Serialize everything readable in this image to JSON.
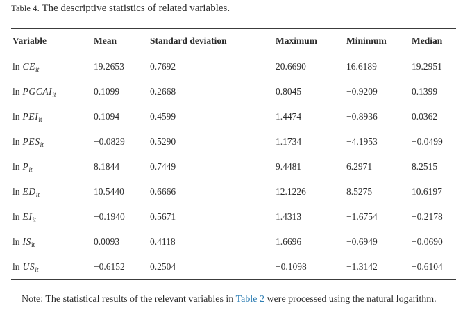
{
  "caption": {
    "label": "Table 4.",
    "title": "The descriptive statistics of related variables."
  },
  "table": {
    "headers": [
      "Variable",
      "Mean",
      "Standard deviation",
      "Maximum",
      "Minimum",
      "Median"
    ],
    "rows": [
      {
        "var_prefix": "ln",
        "var_name": "CE",
        "var_sub": "it",
        "var_sub_italic": true,
        "mean": "19.2653",
        "std": "0.7692",
        "max": "20.6690",
        "min": "16.6189",
        "median": "19.2951"
      },
      {
        "var_prefix": "ln",
        "var_name": "PGCAI",
        "var_sub": "it",
        "var_sub_italic": true,
        "mean": "0.1099",
        "std": "0.2668",
        "max": "0.8045",
        "min": "−0.9209",
        "median": "0.1399"
      },
      {
        "var_prefix": "ln",
        "var_name": "PEI",
        "var_sub": "it",
        "var_sub_italic": false,
        "mean": "0.1094",
        "std": "0.4599",
        "max": "1.4474",
        "min": "−0.8936",
        "median": "0.0362"
      },
      {
        "var_prefix": "ln",
        "var_name": "PES",
        "var_sub": "it",
        "var_sub_italic": true,
        "mean": "−0.0829",
        "std": "0.5290",
        "max": "1.1734",
        "min": "−4.1953",
        "median": "−0.0499"
      },
      {
        "var_prefix": "ln",
        "var_name": "P",
        "var_sub": "it",
        "var_sub_italic": true,
        "mean": "8.1844",
        "std": "0.7449",
        "max": "9.4481",
        "min": "6.2971",
        "median": "8.2515"
      },
      {
        "var_prefix": "ln",
        "var_name": "ED",
        "var_sub": "it",
        "var_sub_italic": true,
        "mean": "10.5440",
        "std": "0.6666",
        "max": "12.1226",
        "min": "8.5275",
        "median": "10.6197"
      },
      {
        "var_prefix": "ln",
        "var_name": "EI",
        "var_sub": "it",
        "var_sub_italic": true,
        "mean": "−0.1940",
        "std": "0.5671",
        "max": "1.4313",
        "min": "−1.6754",
        "median": "−0.2178"
      },
      {
        "var_prefix": "ln",
        "var_name": "IS",
        "var_sub": "it",
        "var_sub_italic": false,
        "mean": "0.0093",
        "std": "0.4118",
        "max": "1.6696",
        "min": "−0.6949",
        "median": "−0.0690"
      },
      {
        "var_prefix": "ln",
        "var_name": "US",
        "var_sub": "it",
        "var_sub_italic": true,
        "mean": "−0.6152",
        "std": "0.2504",
        "max": "−0.1098",
        "min": "−1.3142",
        "median": "−0.6104"
      }
    ]
  },
  "note": {
    "text_before": "Note: The statistical results of the relevant variables in ",
    "link_text": "Table 2",
    "text_after": " were processed using the natural logarithm."
  },
  "colors": {
    "text": "#2b2b2b",
    "rule": "#3c3c3c",
    "link": "#2e7eb3",
    "background": "#ffffff"
  }
}
